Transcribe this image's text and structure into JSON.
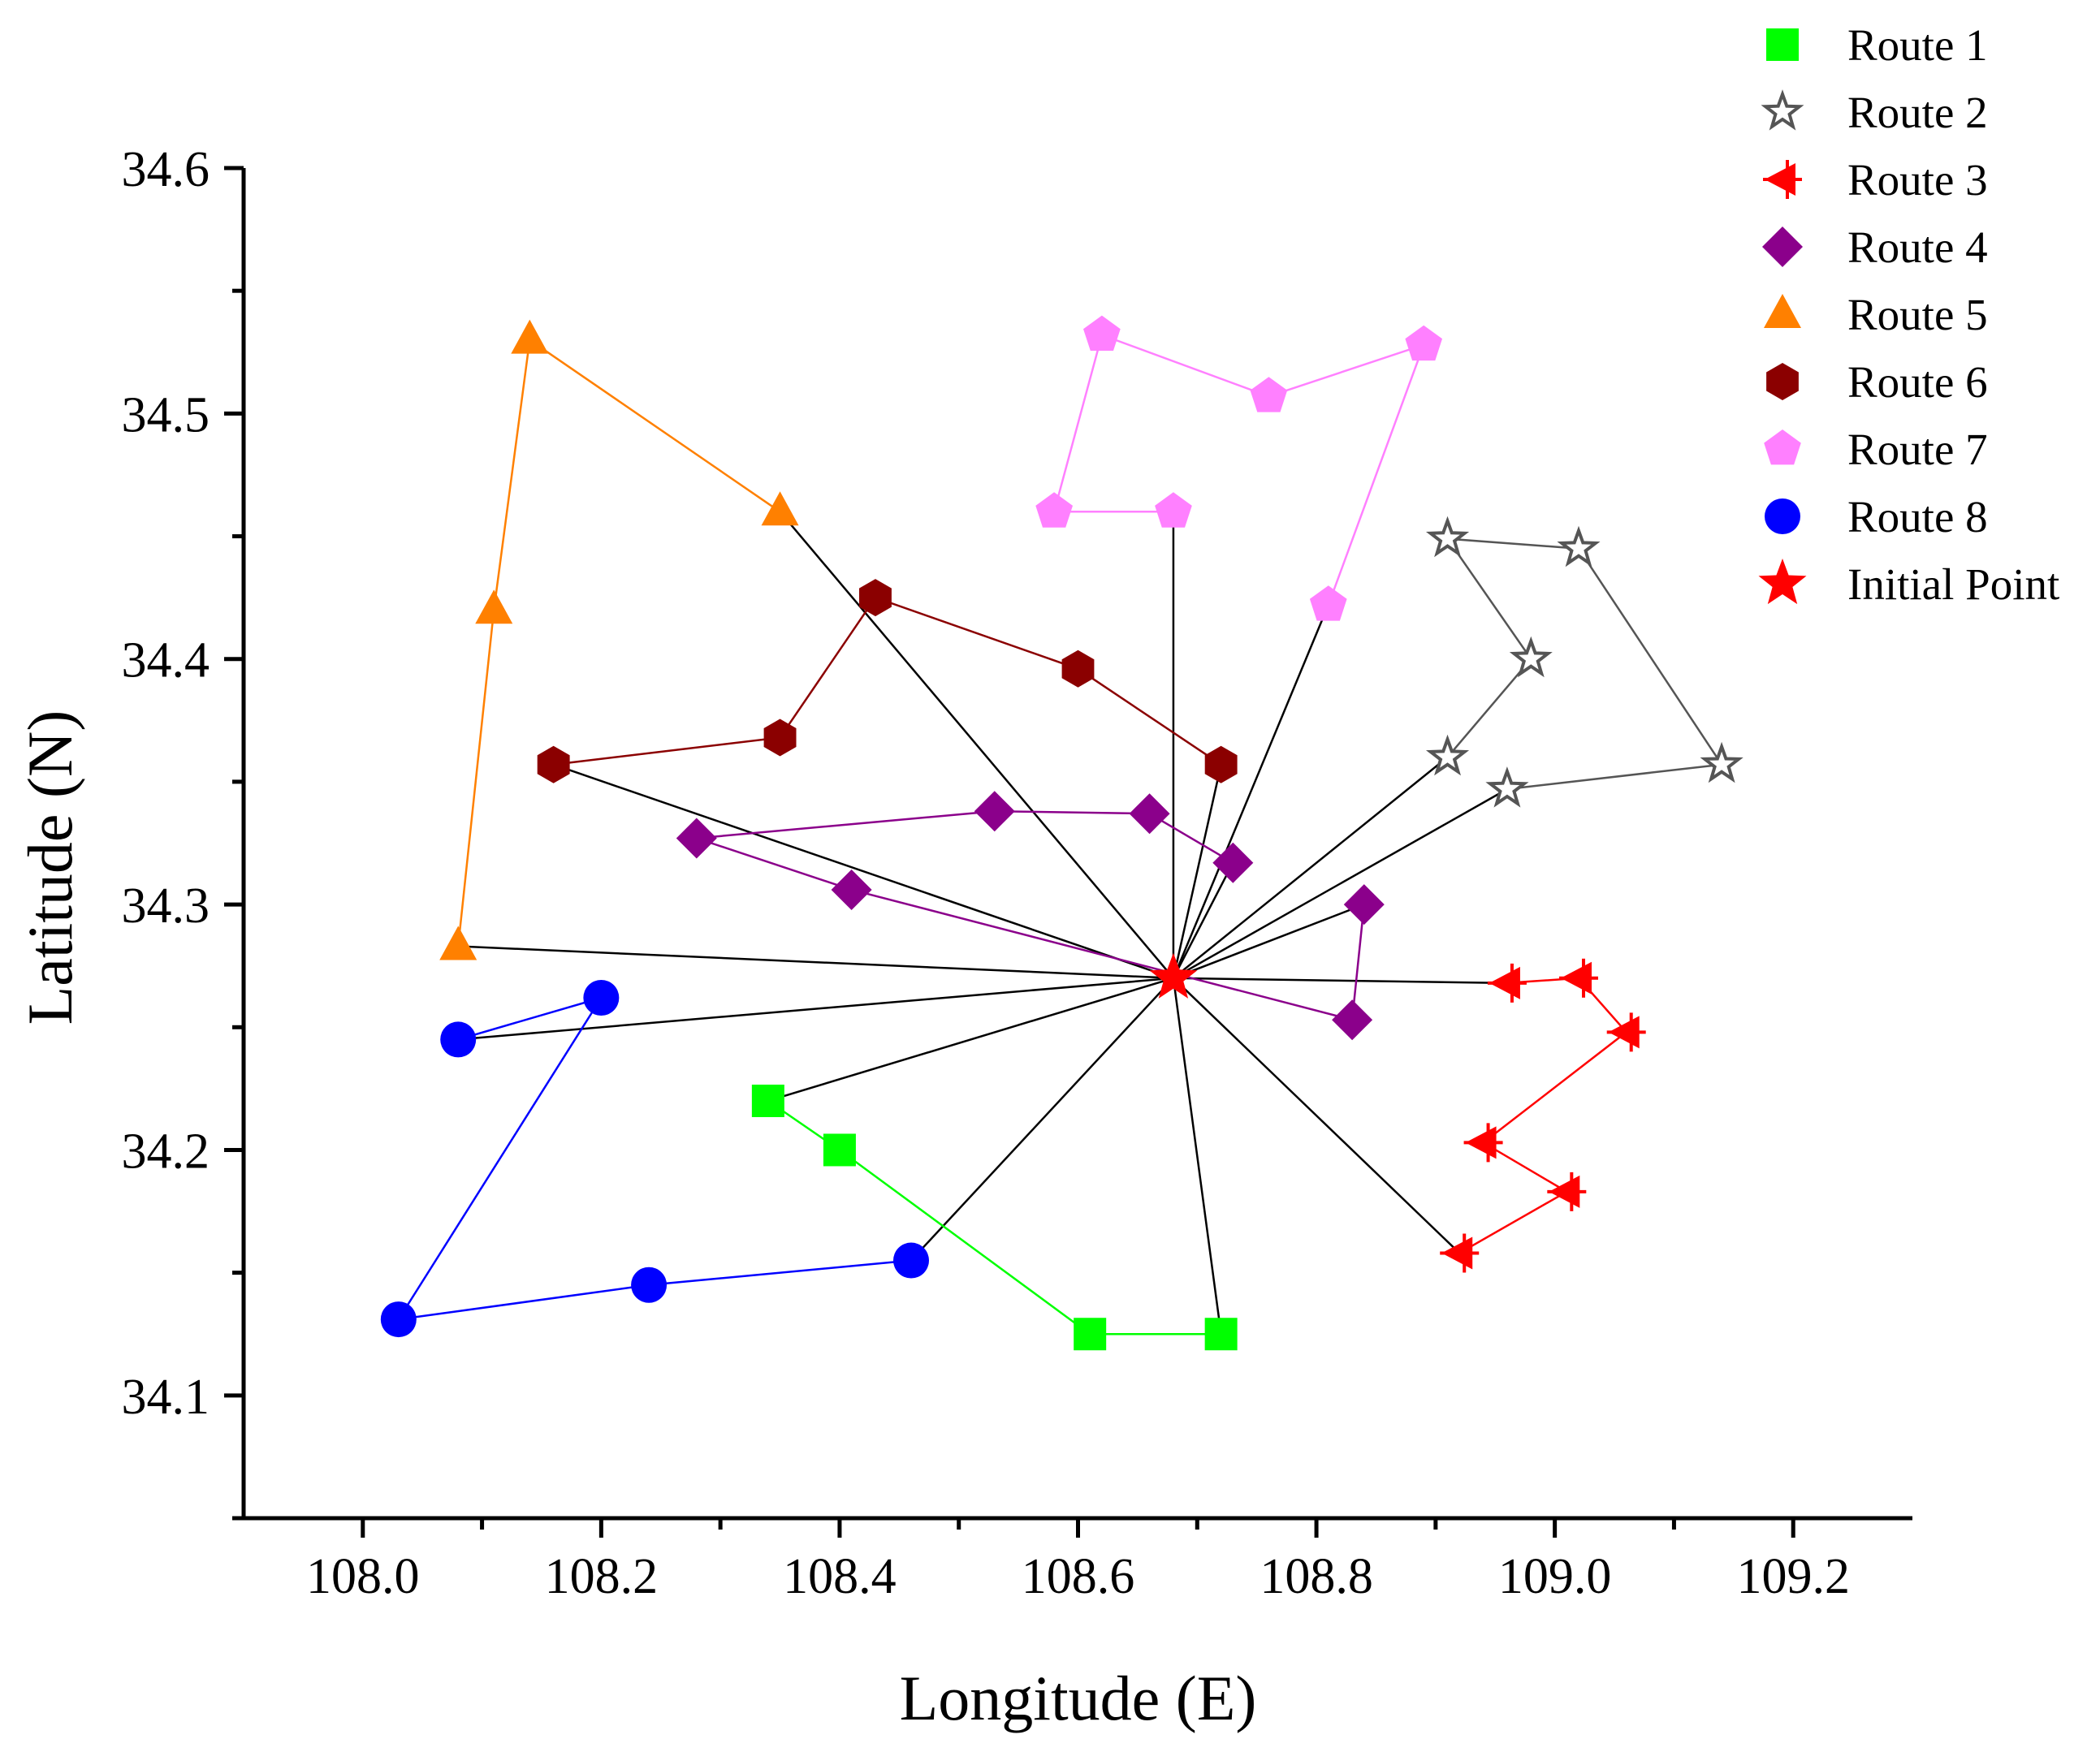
{
  "chart_data": {
    "type": "scatter",
    "xlabel": "Longitude (E)",
    "ylabel": "Latitude (N)",
    "xlim": [
      107.9,
      109.3
    ],
    "ylim": [
      34.05,
      34.6
    ],
    "xticks": [
      108.0,
      108.2,
      108.4,
      108.6,
      108.8,
      109.0,
      109.2
    ],
    "xtick_labels": [
      "108.0",
      "108.2",
      "108.4",
      "108.6",
      "108.8",
      "109.0",
      "109.2"
    ],
    "yticks": [
      34.1,
      34.2,
      34.3,
      34.4,
      34.5,
      34.6
    ],
    "ytick_labels": [
      "34.1",
      "34.2",
      "34.3",
      "34.4",
      "34.5",
      "34.6"
    ],
    "grid": false,
    "legend_position": "top-right",
    "initial_point": {
      "name": "Initial Point",
      "x": 108.68,
      "y": 34.27,
      "color": "#ff0000",
      "marker": "star"
    },
    "series": [
      {
        "name": "Route 1",
        "color": "#00ff00",
        "marker": "square",
        "points": [
          [
            108.34,
            34.22
          ],
          [
            108.4,
            34.2
          ],
          [
            108.61,
            34.125
          ],
          [
            108.72,
            34.125
          ]
        ],
        "connect_start": true,
        "connect_end": true
      },
      {
        "name": "Route 2",
        "color": "#555555",
        "marker": "star-open",
        "points": [
          [
            108.96,
            34.347
          ],
          [
            109.14,
            34.357
          ],
          [
            109.02,
            34.445
          ],
          [
            108.91,
            34.449
          ],
          [
            108.98,
            34.4
          ],
          [
            108.91,
            34.36
          ]
        ],
        "connect_start": true,
        "connect_end": true
      },
      {
        "name": "Route 3",
        "color": "#ff0000",
        "marker": "tri-left",
        "points": [
          [
            108.96,
            34.268
          ],
          [
            109.02,
            34.27
          ],
          [
            109.06,
            34.248
          ],
          [
            108.94,
            34.203
          ],
          [
            109.01,
            34.183
          ],
          [
            108.92,
            34.158
          ]
        ],
        "connect_start": true,
        "connect_end": true
      },
      {
        "name": "Route 4",
        "color": "#8b008b",
        "marker": "diamond",
        "points": [
          [
            108.73,
            34.317
          ],
          [
            108.66,
            34.337
          ],
          [
            108.53,
            34.338
          ],
          [
            108.28,
            34.327
          ],
          [
            108.41,
            34.306
          ],
          [
            108.83,
            34.253
          ],
          [
            108.84,
            34.3
          ]
        ],
        "connect_start": true,
        "connect_end": true
      },
      {
        "name": "Route 5",
        "color": "#ff8000",
        "marker": "triangle",
        "points": [
          [
            108.35,
            34.46
          ],
          [
            108.14,
            34.53
          ],
          [
            108.11,
            34.42
          ],
          [
            108.08,
            34.283
          ]
        ],
        "connect_start": true,
        "connect_end": true
      },
      {
        "name": "Route 6",
        "color": "#8b0000",
        "marker": "hexagon",
        "points": [
          [
            108.72,
            34.357
          ],
          [
            108.6,
            34.396
          ],
          [
            108.43,
            34.425
          ],
          [
            108.35,
            34.368
          ],
          [
            108.16,
            34.357
          ]
        ],
        "connect_start": true,
        "connect_end": true
      },
      {
        "name": "Route 7",
        "color": "#ff80ff",
        "marker": "pentagon",
        "points": [
          [
            108.68,
            34.46
          ],
          [
            108.58,
            34.46
          ],
          [
            108.62,
            34.532
          ],
          [
            108.76,
            34.507
          ],
          [
            108.89,
            34.528
          ],
          [
            108.81,
            34.422
          ]
        ],
        "connect_start": true,
        "connect_end": true
      },
      {
        "name": "Route 8",
        "color": "#0000ff",
        "marker": "circle",
        "points": [
          [
            108.46,
            34.155
          ],
          [
            108.24,
            34.145
          ],
          [
            108.03,
            34.131
          ],
          [
            108.2,
            34.262
          ],
          [
            108.08,
            34.245
          ]
        ],
        "connect_start": true,
        "connect_end": true
      }
    ]
  }
}
